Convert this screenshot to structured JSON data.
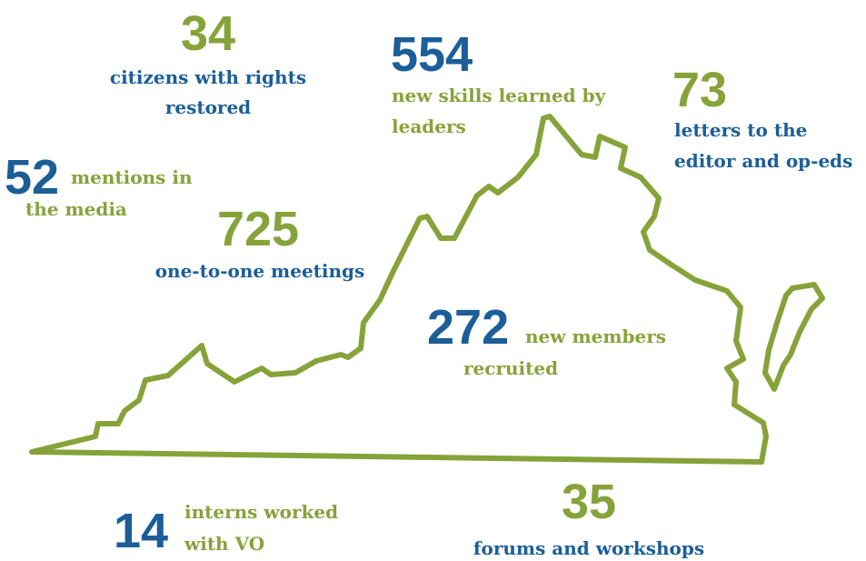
{
  "stats": [
    {
      "number": "34",
      "lines": [
        "citizens with rights",
        "restored"
      ]
    },
    {
      "number": "554",
      "lines": [
        "new skills learned by",
        "leaders"
      ]
    },
    {
      "number": "73",
      "lines": [
        "letters to the",
        "editor and op-eds"
      ]
    },
    {
      "number": "52",
      "lines": [
        "mentions in",
        "the media"
      ]
    },
    {
      "number": "725",
      "lines": [
        "one-to-one meetings"
      ]
    },
    {
      "number": "272",
      "lines": [
        "new members",
        "recruited"
      ]
    },
    {
      "number": "14",
      "lines": [
        "interns worked",
        "with VO"
      ]
    },
    {
      "number": "35",
      "lines": [
        "forums and workshops"
      ]
    }
  ]
}
